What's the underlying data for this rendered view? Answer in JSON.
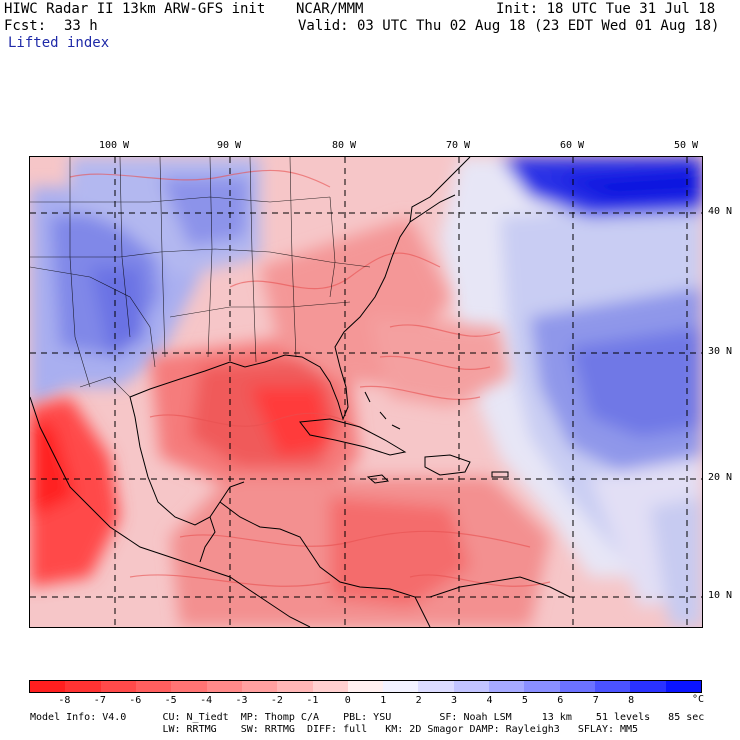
{
  "header": {
    "title": "HIWC Radar II 13km ARW-GFS init",
    "agency": "NCAR/MMM",
    "init": "Init: 18 UTC Tue 31 Jul 18",
    "fcst_label": "Fcst:",
    "fcst_value": "33 h",
    "valid": "Valid: 03 UTC Thu 02 Aug 18 (23 EDT Wed 01 Aug 18)",
    "field": "Lifted index"
  },
  "map": {
    "lon_labels": [
      "100 W",
      "90 W",
      "80 W",
      "70 W",
      "60 W",
      "50 W"
    ],
    "lat_labels": [
      "40 N",
      "30 N",
      "20 N",
      "10 N"
    ],
    "colors": {
      "warm_deep": "#ff3b3b",
      "warm_mid": "#f57c7c",
      "warm_light": "#f5c0c0",
      "neutral": "#fbe8ec",
      "cool_light": "#c9ccf2",
      "cool_mid": "#8f97ea",
      "cool_deep": "#2a33e6",
      "coast": "#000000"
    }
  },
  "colorbar": {
    "ticks": [
      "-8",
      "-7",
      "-6",
      "-5",
      "-4",
      "-3",
      "-2",
      "-1",
      "0",
      "1",
      "2",
      "3",
      "4",
      "5",
      "6",
      "7",
      "8"
    ],
    "unit": "°C",
    "colors": [
      "#ff1f1f",
      "#ff3333",
      "#ff4a4a",
      "#ff5f5f",
      "#ff7474",
      "#ff8a8a",
      "#ffa0a0",
      "#ffb7b7",
      "#ffd0d0",
      "#fff0f0",
      "#f2f2ff",
      "#dcdcff",
      "#c2c4ff",
      "#a6aaff",
      "#8a8fff",
      "#6c72ff",
      "#4b53ff",
      "#2a32ff",
      "#0a14ff"
    ]
  },
  "model_info": {
    "line1": "Model Info: V4.0      CU: N_Tiedt  MP: Thomp C/A    PBL: YSU        SF: Noah LSM     13 km    51 levels   85 sec",
    "line2": "                      LW: RRTMG    SW: RRTMG  DIFF: full   KM: 2D Smagor DAMP: Rayleigh3   SFLAY: MM5"
  }
}
